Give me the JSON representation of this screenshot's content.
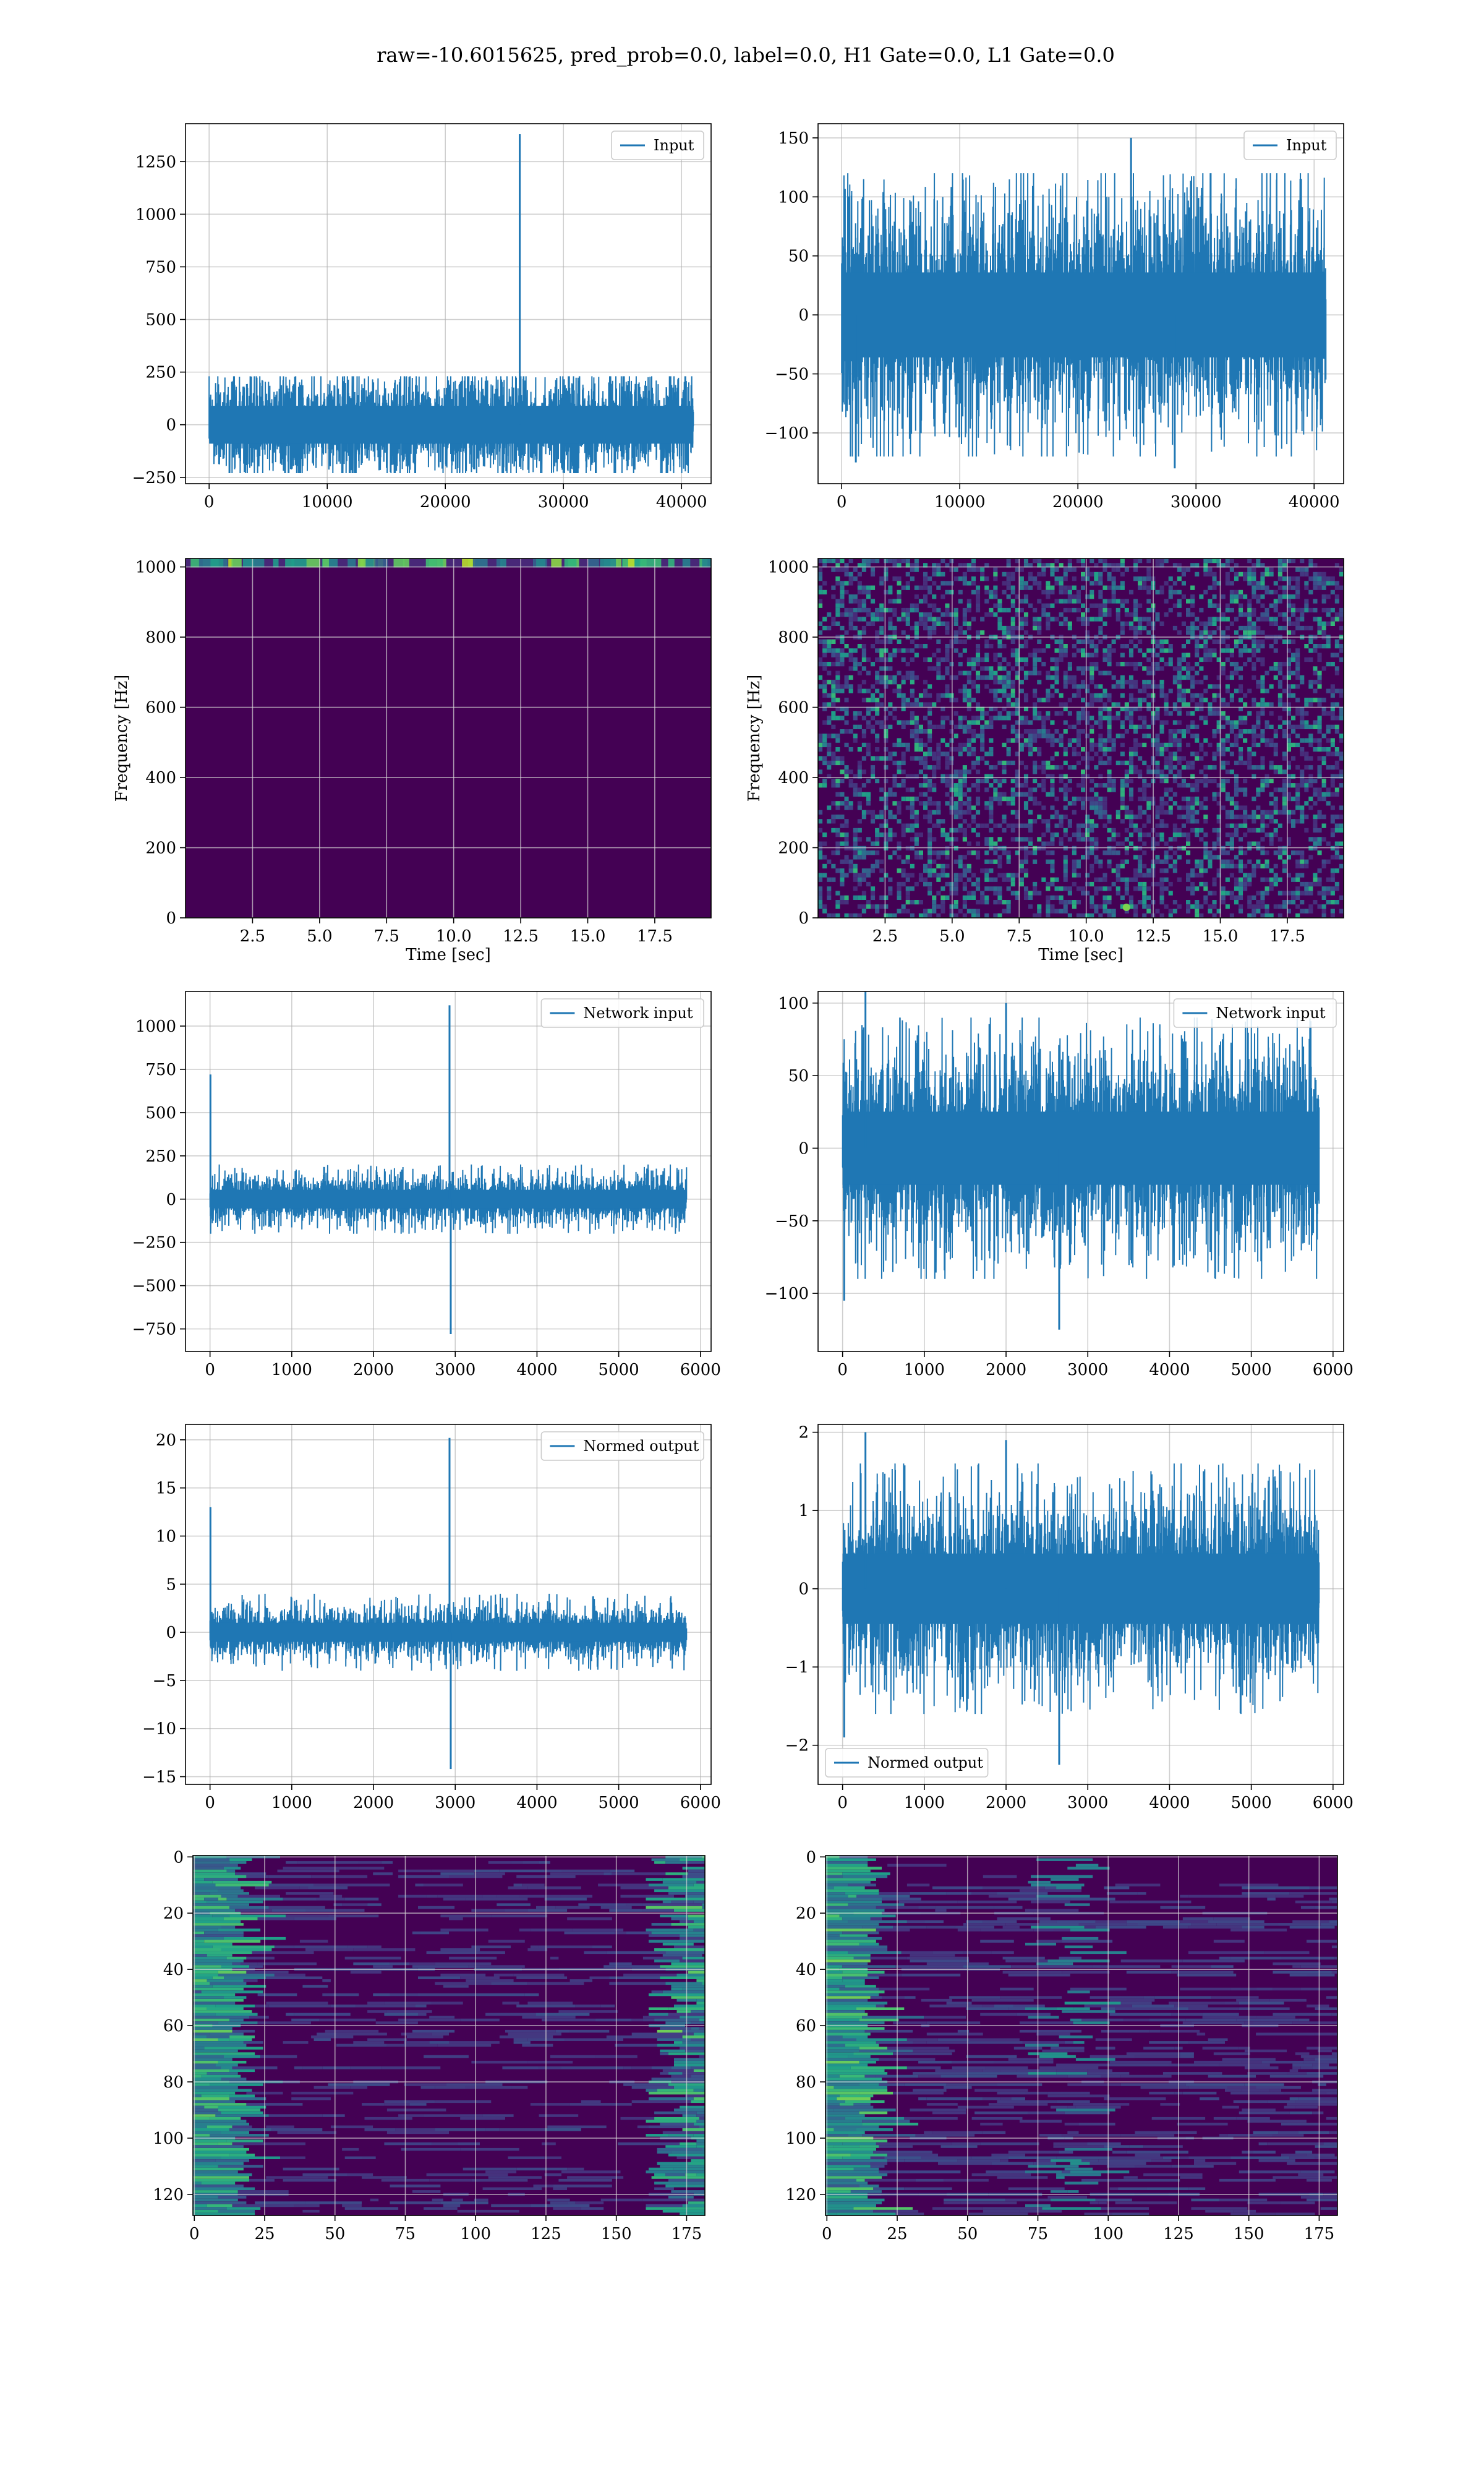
{
  "figure": {
    "suptitle": "raw=-10.6015625, pred_prob=0.0, label=0.0, H1 Gate=0.0, L1 Gate=0.0"
  },
  "colors": {
    "line": "#1f77b4",
    "viridis": [
      "#440154",
      "#482878",
      "#3e4989",
      "#31688e",
      "#26828e",
      "#1f9e89",
      "#35b779",
      "#6ece58",
      "#b5de2b",
      "#fde725"
    ]
  },
  "chart_data": [
    {
      "id": "p1",
      "type": "line",
      "legend": "Input",
      "legend_loc": "upper-right",
      "grid": true,
      "xlim": [
        -2000,
        42500
      ],
      "ylim": [
        -280,
        1430
      ],
      "xticks": [
        0,
        10000,
        20000,
        30000,
        40000
      ],
      "yticks": [
        -250,
        0,
        250,
        500,
        750,
        1000,
        1250
      ],
      "x_range": [
        0,
        41000
      ],
      "noise_amp": 100,
      "noise_extreme": 230,
      "noise_pattern": "modulated",
      "spikes": [
        {
          "x": 26300,
          "y": 1380
        },
        {
          "x": 26300,
          "y": -200
        }
      ]
    },
    {
      "id": "p2",
      "type": "line",
      "legend": "Input",
      "legend_loc": "upper-right",
      "grid": true,
      "xlim": [
        -2000,
        42500
      ],
      "ylim": [
        -143,
        162
      ],
      "xticks": [
        0,
        10000,
        20000,
        30000,
        40000
      ],
      "yticks": [
        -100,
        -50,
        0,
        50,
        100,
        150
      ],
      "x_range": [
        0,
        41000
      ],
      "noise_amp": 40,
      "noise_extreme": 120,
      "noise_pattern": "flat",
      "spikes": [
        {
          "x": 24500,
          "y": 150
        },
        {
          "x": 28200,
          "y": -130
        },
        {
          "x": 1200,
          "y": -125
        }
      ]
    },
    {
      "id": "p3",
      "type": "heatmap",
      "grid": true,
      "xlim": [
        0,
        19.6
      ],
      "ylim": [
        0,
        1024
      ],
      "xticks": [
        2.5,
        5.0,
        7.5,
        10.0,
        12.5,
        15.0,
        17.5
      ],
      "yticks": [
        0,
        200,
        400,
        600,
        800,
        1000
      ],
      "xlabel": "Time [sec]",
      "ylabel": "Frequency [Hz]",
      "pattern": "top-band"
    },
    {
      "id": "p4",
      "type": "heatmap",
      "grid": true,
      "xlim": [
        0,
        19.6
      ],
      "ylim": [
        0,
        1024
      ],
      "xticks": [
        2.5,
        5.0,
        7.5,
        10.0,
        12.5,
        15.0,
        17.5
      ],
      "yticks": [
        0,
        200,
        400,
        600,
        800,
        1000
      ],
      "xlabel": "Time [sec]",
      "ylabel": "Frequency [Hz]",
      "pattern": "speckle"
    },
    {
      "id": "p5",
      "type": "line",
      "legend": "Network input",
      "legend_loc": "upper-right",
      "grid": true,
      "xlim": [
        -300,
        6130
      ],
      "ylim": [
        -880,
        1200
      ],
      "xticks": [
        0,
        1000,
        2000,
        3000,
        4000,
        5000,
        6000
      ],
      "yticks": [
        -750,
        -500,
        -250,
        0,
        250,
        500,
        750,
        1000
      ],
      "x_range": [
        0,
        5830
      ],
      "noise_amp": 60,
      "noise_extreme": 200,
      "noise_pattern": "flat",
      "spikes": [
        {
          "x": 5,
          "y": 720
        },
        {
          "x": 2930,
          "y": 1120
        },
        {
          "x": 2945,
          "y": -780
        }
      ]
    },
    {
      "id": "p6",
      "type": "line",
      "legend": "Network input",
      "legend_loc": "upper-right",
      "grid": true,
      "xlim": [
        -300,
        6130
      ],
      "ylim": [
        -140,
        108
      ],
      "xticks": [
        0,
        1000,
        2000,
        3000,
        4000,
        5000,
        6000
      ],
      "yticks": [
        -100,
        -50,
        0,
        50,
        100
      ],
      "x_range": [
        0,
        5830
      ],
      "noise_amp": 28,
      "noise_extreme": 90,
      "noise_pattern": "flat",
      "spikes": [
        {
          "x": 20,
          "y": -105
        },
        {
          "x": 2650,
          "y": -125
        },
        {
          "x": 280,
          "y": 108
        },
        {
          "x": 2000,
          "y": 100
        }
      ]
    },
    {
      "id": "p7",
      "type": "line",
      "legend": "Normed output",
      "legend_loc": "upper-right",
      "grid": true,
      "xlim": [
        -300,
        6130
      ],
      "ylim": [
        -15.8,
        21.6
      ],
      "xticks": [
        0,
        1000,
        2000,
        3000,
        4000,
        5000,
        6000
      ],
      "yticks": [
        -15,
        -10,
        -5,
        0,
        5,
        10,
        15,
        20
      ],
      "x_range": [
        0,
        5830
      ],
      "noise_amp": 1.1,
      "noise_extreme": 4,
      "noise_pattern": "flat",
      "spikes": [
        {
          "x": 5,
          "y": 13
        },
        {
          "x": 2930,
          "y": 20.2
        },
        {
          "x": 2945,
          "y": -14.2
        }
      ]
    },
    {
      "id": "p8",
      "type": "line",
      "legend": "Normed output",
      "legend_loc": "lower-left",
      "grid": true,
      "xlim": [
        -300,
        6130
      ],
      "ylim": [
        -2.5,
        2.1
      ],
      "xticks": [
        0,
        1000,
        2000,
        3000,
        4000,
        5000,
        6000
      ],
      "yticks": [
        -2,
        -1,
        0,
        1,
        2
      ],
      "x_range": [
        0,
        5830
      ],
      "noise_amp": 0.5,
      "noise_extreme": 1.6,
      "noise_pattern": "flat",
      "spikes": [
        {
          "x": 20,
          "y": -1.9
        },
        {
          "x": 2650,
          "y": -2.25
        },
        {
          "x": 280,
          "y": 2.0
        },
        {
          "x": 2000,
          "y": 1.9
        }
      ]
    },
    {
      "id": "p9",
      "type": "heatmap",
      "grid": true,
      "xlim": [
        -0.5,
        181.5
      ],
      "ylim": [
        127.5,
        -0.5
      ],
      "xticks": [
        0,
        25,
        50,
        75,
        100,
        125,
        150,
        175
      ],
      "yticks": [
        0,
        20,
        40,
        60,
        80,
        100,
        120
      ],
      "pattern": "streaks-right"
    },
    {
      "id": "p10",
      "type": "heatmap",
      "grid": true,
      "xlim": [
        -0.5,
        181.5
      ],
      "ylim": [
        127.5,
        -0.5
      ],
      "xticks": [
        0,
        25,
        50,
        75,
        100,
        125,
        150,
        175
      ],
      "yticks": [
        0,
        20,
        40,
        60,
        80,
        100,
        120
      ],
      "pattern": "streaks-left"
    }
  ]
}
